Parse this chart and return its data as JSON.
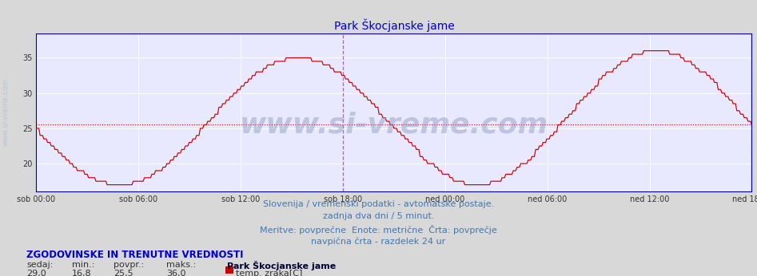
{
  "title": "Park Škocjanske jame",
  "title_color": "#0000cc",
  "title_fontsize": 10,
  "bg_color": "#d8d8d8",
  "plot_bg_color": "#e8e8ff",
  "grid_color": "#ffffff",
  "line_color": "#cc0000",
  "avg_line_color": "#cc0000",
  "avg_line_value": 25.5,
  "vertical_line_color": "#dd44dd",
  "x_tick_labels": [
    "sob 00:00",
    "sob 06:00",
    "sob 12:00",
    "sob 18:00",
    "ned 00:00",
    "ned 06:00",
    "ned 12:00",
    "ned 18:00"
  ],
  "x_tick_positions": [
    0,
    72,
    144,
    216,
    288,
    360,
    432,
    504
  ],
  "ylim_low": 16.0,
  "ylim_high": 38.5,
  "yticks": [
    20,
    25,
    30,
    35
  ],
  "axis_color": "#0000aa",
  "watermark": "www.si-vreme.com",
  "watermark_color": "#8899bb",
  "watermark_alpha": 0.45,
  "watermark_fontsize": 26,
  "footer_line1": "Slovenija / vremenski podatki - avtomatske postaje.",
  "footer_line2": "zadnja dva dni / 5 minut.",
  "footer_line3": "Meritve: povprečne  Enote: metrične  Črta: povprečje",
  "footer_line4": "navpična črta - razdelek 24 ur",
  "footer_color": "#4477aa",
  "footer_fontsize": 8,
  "legend_title": "ZGODOVINSKE IN TRENUTNE VREDNOSTI",
  "legend_title_color": "#0000cc",
  "legend_col_labels": [
    "sedaj:",
    "min.:",
    "povpr.:",
    "maks.:"
  ],
  "legend_col_values": [
    "29,0",
    "16,8",
    "25,5",
    "36,0"
  ],
  "legend_station": "Park Škocjanske jame",
  "legend_series": "temp. zraka[C]",
  "legend_color": "#333333",
  "legend_fontsize": 8,
  "vertical_line_sob18": 216,
  "vertical_line_ned18": 504,
  "n_points": 577,
  "side_label": "www.si-vreme.com",
  "side_label_color": "#aabbcc",
  "side_label_fontsize": 6.5
}
